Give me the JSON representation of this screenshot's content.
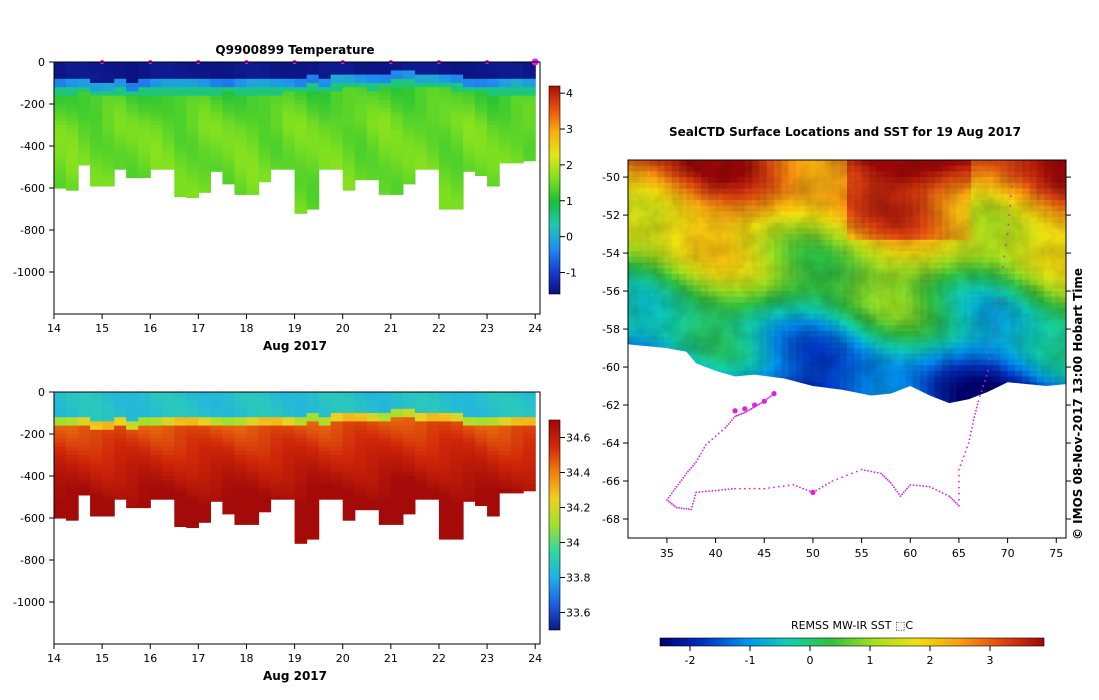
{
  "colors": {
    "temp_stops": [
      "#0a0f7a",
      "#1a3fd0",
      "#1f8ff0",
      "#20c8b0",
      "#18c038",
      "#80e020",
      "#e0e818",
      "#f8b010",
      "#e85010",
      "#a81008"
    ],
    "sal_stops": [
      "#0a1a8a",
      "#1f5fe0",
      "#20b0e8",
      "#30d8a0",
      "#a0e030",
      "#f0d020",
      "#f08010",
      "#d02808",
      "#a00808"
    ],
    "sst_stops": [
      "#000070",
      "#0030c0",
      "#0090f0",
      "#10d0b0",
      "#30c040",
      "#a0e020",
      "#f0e010",
      "#f8a010",
      "#e04810",
      "#a00808"
    ],
    "track": "#e020e0"
  },
  "chart_data": [
    {
      "type": "heatmap",
      "title": "Q9900899  Temperature",
      "xlabel": "Aug 2017",
      "ylabel": "",
      "x_ticks": [
        "14",
        "15",
        "16",
        "17",
        "18",
        "19",
        "20",
        "21",
        "22",
        "23",
        "24"
      ],
      "y_ticks": [
        "0",
        "-200",
        "-400",
        "-600",
        "-800",
        "-1000"
      ],
      "xlim": [
        14,
        24.1
      ],
      "ylim": [
        -1200,
        0
      ],
      "colorbar_ticks": [
        "4",
        "3",
        "2",
        "1",
        "0",
        "-1"
      ],
      "colorbar_range": [
        -1.6,
        4.2
      ],
      "variable": "temperature",
      "profile_days": [
        14.0,
        14.25,
        14.5,
        14.75,
        15.0,
        15.25,
        15.5,
        15.75,
        16.0,
        16.25,
        16.5,
        16.75,
        17.0,
        17.25,
        17.5,
        17.75,
        18.0,
        18.25,
        18.5,
        18.75,
        19.0,
        19.25,
        19.5,
        19.75,
        20.0,
        20.25,
        20.5,
        20.75,
        21.0,
        21.25,
        21.5,
        21.75,
        22.0,
        22.25,
        22.5,
        22.75,
        23.0,
        23.25,
        23.5,
        23.75
      ],
      "profile_max_depth": [
        -600,
        -610,
        -490,
        -590,
        -590,
        -510,
        -550,
        -550,
        -510,
        -510,
        -640,
        -645,
        -620,
        -520,
        -580,
        -630,
        -630,
        -570,
        -510,
        -510,
        -720,
        -700,
        -510,
        -510,
        -610,
        -560,
        -560,
        -630,
        -630,
        -580,
        -510,
        -510,
        -700,
        -700,
        -520,
        -540,
        -590,
        -480,
        -480,
        -470
      ],
      "surface_mixed_layer_depth": [
        -130,
        -130,
        -120,
        -135,
        -140,
        -130,
        -135,
        -125,
        -130,
        -130,
        -125,
        -130,
        -130,
        -130,
        -120,
        -130,
        -125,
        -130,
        -130,
        -120,
        -115,
        -110,
        -120,
        -110,
        -100,
        -100,
        -110,
        -100,
        -90,
        -90,
        -100,
        -100,
        -100,
        -110,
        -115,
        -120,
        -130,
        -130,
        -125,
        -125
      ]
    },
    {
      "type": "heatmap",
      "title": "",
      "xlabel": "Aug 2017",
      "ylabel": "",
      "x_ticks": [
        "14",
        "15",
        "16",
        "17",
        "18",
        "19",
        "20",
        "21",
        "22",
        "23",
        "24"
      ],
      "y_ticks": [
        "0",
        "-200",
        "-400",
        "-600",
        "-800",
        "-1000"
      ],
      "xlim": [
        14,
        24.1
      ],
      "ylim": [
        -1200,
        0
      ],
      "colorbar_ticks": [
        "34.6",
        "34.4",
        "34.2",
        "34",
        "33.8",
        "33.6"
      ],
      "colorbar_range": [
        33.5,
        34.7
      ],
      "variable": "salinity"
    },
    {
      "type": "heatmap",
      "title": "SealCTD Surface Locations and SST for 19 Aug 2017",
      "xlabel": "",
      "ylabel": "",
      "x_ticks": [
        "35",
        "40",
        "45",
        "50",
        "55",
        "60",
        "65",
        "70",
        "75"
      ],
      "y_ticks": [
        "-50",
        "-52",
        "-54",
        "-56",
        "-58",
        "-60",
        "-62",
        "-64",
        "-66",
        "-68"
      ],
      "xlim": [
        31,
        76
      ],
      "ylim": [
        -69,
        -49.1
      ],
      "colorbar_label": "REMSS MW-IR SST ⬚C",
      "colorbar_ticks": [
        "-2",
        "-1",
        "0",
        "1",
        "2",
        "3"
      ],
      "colorbar_range": [
        -2.5,
        3.9
      ],
      "ice_edge_lat": [
        [
          31,
          -58.8
        ],
        [
          35,
          -59.0
        ],
        [
          37,
          -59.2
        ],
        [
          38,
          -59.8
        ],
        [
          40,
          -60.2
        ],
        [
          42,
          -60.5
        ],
        [
          44,
          -60.4
        ],
        [
          47,
          -60.6
        ],
        [
          50,
          -61.0
        ],
        [
          53,
          -61.2
        ],
        [
          56,
          -61.5
        ],
        [
          58,
          -61.4
        ],
        [
          60,
          -61.0
        ],
        [
          62,
          -61.5
        ],
        [
          64,
          -61.9
        ],
        [
          66,
          -61.7
        ],
        [
          68,
          -61.3
        ],
        [
          70,
          -60.8
        ],
        [
          72,
          -60.9
        ],
        [
          74,
          -61.0
        ],
        [
          76,
          -60.9
        ]
      ],
      "track_points": [
        [
          46,
          -61.4
        ],
        [
          45,
          -61.8
        ],
        [
          44,
          -62.1
        ],
        [
          43,
          -62.4
        ],
        [
          42,
          -62.6
        ],
        [
          41,
          -63.2
        ],
        [
          39,
          -64.1
        ],
        [
          38,
          -65.0
        ],
        [
          37,
          -65.6
        ],
        [
          36,
          -66.3
        ],
        [
          35,
          -67.0
        ],
        [
          36,
          -67.4
        ],
        [
          37.5,
          -67.5
        ],
        [
          38,
          -66.6
        ],
        [
          40,
          -66.5
        ],
        [
          42,
          -66.4
        ],
        [
          45,
          -66.4
        ],
        [
          48,
          -66.2
        ],
        [
          50,
          -66.6
        ],
        [
          52,
          -66.0
        ],
        [
          55,
          -65.4
        ],
        [
          57,
          -65.6
        ],
        [
          58,
          -66.1
        ],
        [
          59,
          -66.8
        ],
        [
          60,
          -66.2
        ],
        [
          62,
          -66.3
        ],
        [
          64,
          -66.8
        ],
        [
          65,
          -67.3
        ],
        [
          65,
          -65.4
        ],
        [
          66,
          -64.0
        ],
        [
          66.5,
          -62.8
        ],
        [
          67,
          -61.8
        ],
        [
          68,
          -60.2
        ],
        [
          69,
          -56.5
        ],
        [
          70,
          -53.0
        ],
        [
          70.5,
          -50.0
        ]
      ],
      "track_markers": [
        [
          42,
          -62.3
        ],
        [
          43,
          -62.2
        ],
        [
          44,
          -62.0
        ],
        [
          45,
          -61.8
        ],
        [
          46,
          -61.4
        ],
        [
          50,
          -66.6
        ]
      ]
    }
  ],
  "credit": "© IMOS 08-Nov-2017 13:00 Hobart Time",
  "ticks_last": "24"
}
